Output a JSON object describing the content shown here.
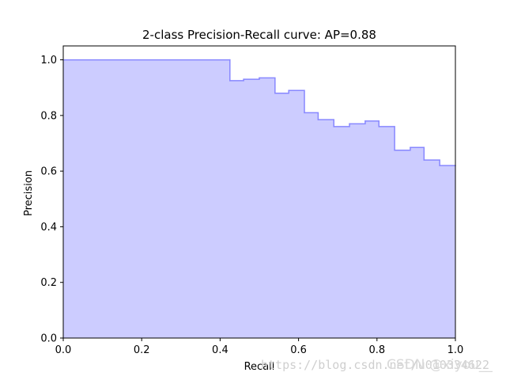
{
  "chart_data": {
    "type": "area",
    "title": "2-class Precision-Recall curve: AP=0.88",
    "xlabel": "Recall",
    "ylabel": "Precision",
    "xlim": [
      0.0,
      1.0
    ],
    "ylim": [
      0.0,
      1.05
    ],
    "x_ticks": [
      "0.0",
      "0.2",
      "0.4",
      "0.6",
      "0.8",
      "1.0"
    ],
    "y_ticks": [
      "0.0",
      "0.2",
      "0.4",
      "0.6",
      "0.8",
      "1.0"
    ],
    "grid": false,
    "fill_color": "#ccccff",
    "line_color": "#8888ff",
    "step": "post",
    "series": [
      {
        "recall": [
          0.0,
          0.425,
          0.425,
          0.46,
          0.5,
          0.54,
          0.575,
          0.615,
          0.65,
          0.69,
          0.73,
          0.77,
          0.805,
          0.845,
          0.885,
          0.92,
          0.96,
          1.0
        ],
        "precision": [
          1.0,
          1.0,
          0.925,
          0.93,
          0.935,
          0.88,
          0.89,
          0.81,
          0.785,
          0.76,
          0.77,
          0.78,
          0.76,
          0.675,
          0.685,
          0.64,
          0.62,
          0.62
        ]
      }
    ]
  },
  "watermark": {
    "url_text": "https://blog.csdn.net/u010334622",
    "brand_text": "CSDN @xiyou__"
  }
}
